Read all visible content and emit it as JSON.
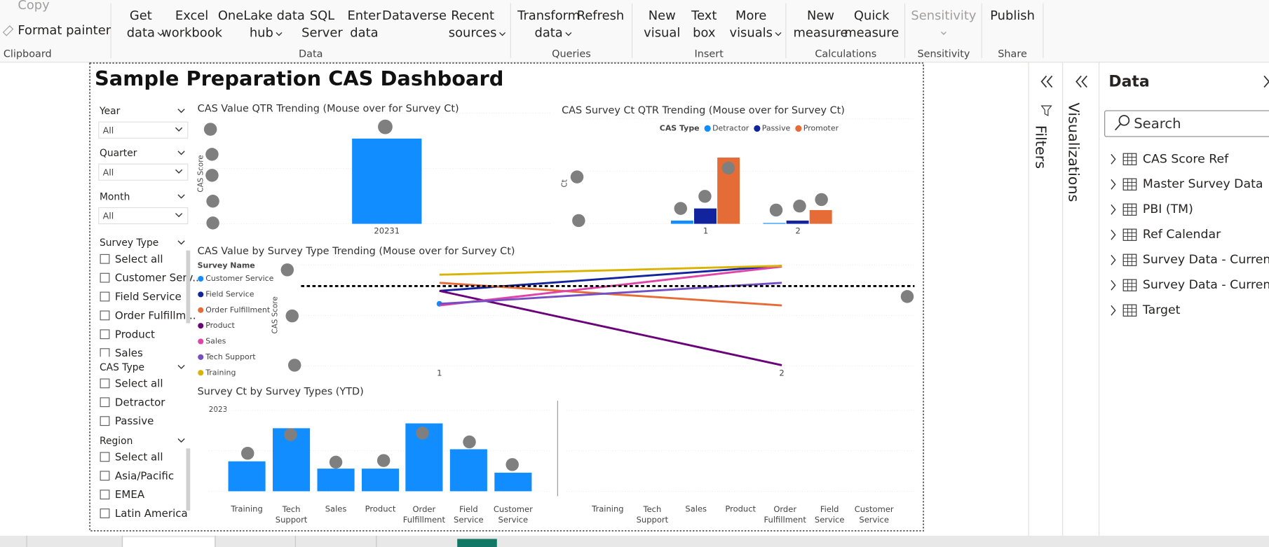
{
  "ribbon": {
    "groups": [
      {
        "label": "Clipboard",
        "items": [
          {
            "lines": [
              "Copy"
            ]
          },
          {
            "lines": [
              "Format painter"
            ]
          }
        ]
      },
      {
        "label": "Data",
        "items": [
          {
            "lines": [
              "Get",
              "data"
            ]
          },
          {
            "lines": [
              "Excel",
              "workbook"
            ]
          },
          {
            "lines": [
              "OneLake data",
              "hub"
            ]
          },
          {
            "lines": [
              "SQL",
              "Server"
            ]
          },
          {
            "lines": [
              "Enter",
              "data"
            ]
          },
          {
            "lines": [
              "Dataverse"
            ]
          },
          {
            "lines": [
              "Recent",
              "sources"
            ]
          }
        ]
      },
      {
        "label": "Queries",
        "items": [
          {
            "lines": [
              "Transform",
              "data"
            ]
          },
          {
            "lines": [
              "Refresh"
            ]
          }
        ]
      },
      {
        "label": "Insert",
        "items": [
          {
            "lines": [
              "New",
              "visual"
            ]
          },
          {
            "lines": [
              "Text",
              "box"
            ]
          },
          {
            "lines": [
              "More",
              "visuals"
            ]
          }
        ]
      },
      {
        "label": "Calculations",
        "items": [
          {
            "lines": [
              "New",
              "measure"
            ]
          },
          {
            "lines": [
              "Quick",
              "measure"
            ]
          }
        ]
      },
      {
        "label": "Sensitivity",
        "items": [
          {
            "lines": [
              "Sensitivity"
            ]
          }
        ]
      },
      {
        "label": "Share",
        "items": [
          {
            "lines": [
              "Publish"
            ]
          }
        ]
      }
    ]
  },
  "report": {
    "title": "Sample Preparation CAS Dashboard",
    "slicers": [
      {
        "label": "Year",
        "value": "All"
      },
      {
        "label": "Quarter",
        "value": "All"
      },
      {
        "label": "Month",
        "value": "All"
      }
    ],
    "checklists": [
      {
        "label": "Survey Type",
        "options": [
          "Select all",
          "Customer Serv...",
          "Field Service",
          "Order Fulfillm...",
          "Product",
          "Sales"
        ]
      },
      {
        "label": "CAS Type",
        "options": [
          "Select all",
          "Detractor",
          "Passive"
        ]
      },
      {
        "label": "Region",
        "options": [
          "Select all",
          "Asia/Pacific",
          "EMEA",
          "Latin America"
        ]
      }
    ],
    "chart_data": [
      {
        "type": "bar",
        "title": "CAS Value QTR Trending (Mouse over for Survey Ct)",
        "y_label": "CAS Score",
        "categories": [
          "20231"
        ],
        "values": [
          77
        ],
        "color": "#118dff",
        "ylim": [
          0,
          100
        ]
      },
      {
        "type": "grouped_bar",
        "title": "CAS Survey Ct QTR Trending (Mouse over for Survey Ct)",
        "y_label": "Ct",
        "legend_title": "CAS Type",
        "categories": [
          "1",
          "2"
        ],
        "ylim": [
          0,
          130
        ],
        "series": [
          {
            "name": "Detractor",
            "color": "#118dff",
            "values": [
              4,
              1
            ]
          },
          {
            "name": "Passive",
            "color": "#12239e",
            "values": [
              19,
              4
            ]
          },
          {
            "name": "Promoter",
            "color": "#e66c37",
            "values": [
              82,
              17
            ]
          }
        ]
      },
      {
        "type": "line",
        "title": "CAS Value by Survey Type Trending (Mouse over for Survey Ct)",
        "y_label": "CAS Score",
        "legend_title": "Survey Name",
        "categories": [
          "1",
          "2"
        ],
        "ylim": [
          0,
          125
        ],
        "target": 99,
        "series": [
          {
            "name": "Customer Service",
            "color": "#118dff",
            "values": [
              77,
              null
            ]
          },
          {
            "name": "Field Service",
            "color": "#12239e",
            "values": [
              93,
              124
            ]
          },
          {
            "name": "Order Fulfillment",
            "color": "#e66c37",
            "values": [
              103,
              75
            ]
          },
          {
            "name": "Product",
            "color": "#6b007b",
            "values": [
              93,
              1
            ]
          },
          {
            "name": "Sales",
            "color": "#e044a7",
            "values": [
              75,
              123
            ]
          },
          {
            "name": "Tech Support",
            "color": "#744ec2",
            "values": [
              77,
              103
            ]
          },
          {
            "name": "Training",
            "color": "#d9b300",
            "values": [
              113,
              124
            ]
          }
        ]
      },
      {
        "type": "bar",
        "title": "Survey Ct by Survey Types (YTD)",
        "subtitle": "2023",
        "categories": [
          "Training",
          "Tech Support",
          "Sales",
          "Product",
          "Order Fulfillment",
          "Field Service",
          "Customer Service"
        ],
        "values": [
          37,
          78,
          28,
          28,
          84,
          52,
          23
        ],
        "color": "#118dff",
        "ylim": [
          0,
          100
        ]
      },
      {
        "type": "bar",
        "categories": [
          "Training",
          "Tech Support",
          "Sales",
          "Product",
          "Order Fulfillment",
          "Field Service",
          "Customer Service"
        ],
        "values": [
          null,
          null,
          null,
          null,
          null,
          null,
          null
        ],
        "color": "#118dff",
        "ylim": [
          0,
          100
        ]
      }
    ]
  },
  "panes": {
    "filters": "Filters",
    "visualizations": "Visualizations",
    "data": {
      "title": "Data",
      "search": "Search",
      "tables": [
        "CAS Score Ref",
        "Master Survey Data",
        "PBI (TM)",
        "Ref Calendar",
        "Survey Data - Current ...",
        "Survey Data - Current ...",
        "Target"
      ]
    }
  }
}
